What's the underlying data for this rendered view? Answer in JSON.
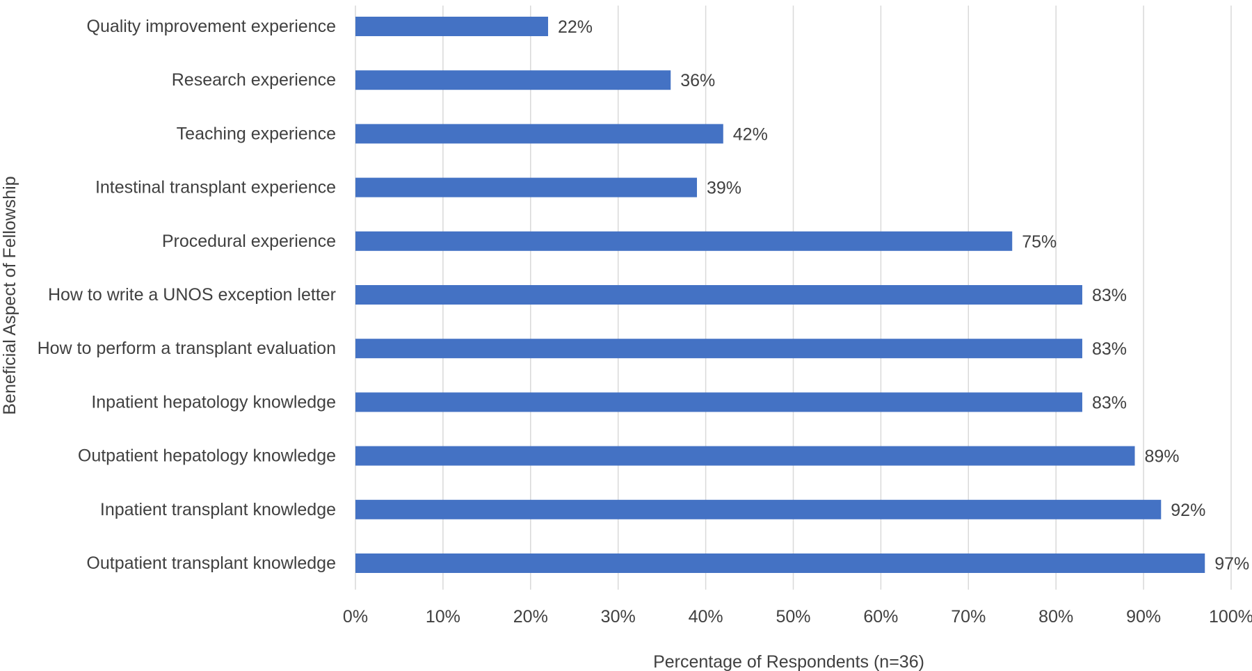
{
  "chart_data": {
    "type": "bar",
    "orientation": "horizontal",
    "categories": [
      "Quality improvement experience",
      "Research experience",
      "Teaching experience",
      "Intestinal transplant experience",
      "Procedural experience",
      "How to write a UNOS exception letter",
      "How to perform a transplant evaluation",
      "Inpatient hepatology knowledge",
      "Outpatient hepatology knowledge",
      "Inpatient transplant knowledge",
      "Outpatient transplant knowledge"
    ],
    "values": [
      22,
      36,
      42,
      39,
      75,
      83,
      83,
      83,
      89,
      92,
      97
    ],
    "data_labels": [
      "22%",
      "36%",
      "42%",
      "39%",
      "75%",
      "83%",
      "83%",
      "83%",
      "89%",
      "92%",
      "97%"
    ],
    "x_ticks": [
      "0%",
      "10%",
      "20%",
      "30%",
      "40%",
      "50%",
      "60%",
      "70%",
      "80%",
      "90%",
      "100%"
    ],
    "xlim": [
      0,
      100
    ],
    "xlabel": "Percentage of Respondents (n=36)",
    "ylabel": "Beneficial Aspect of Fellowship",
    "title": "",
    "grid": "vertical",
    "legend": "none",
    "bar_color": "#4472C4",
    "grid_color": "#D9D9D9",
    "text_color": "#404040"
  }
}
